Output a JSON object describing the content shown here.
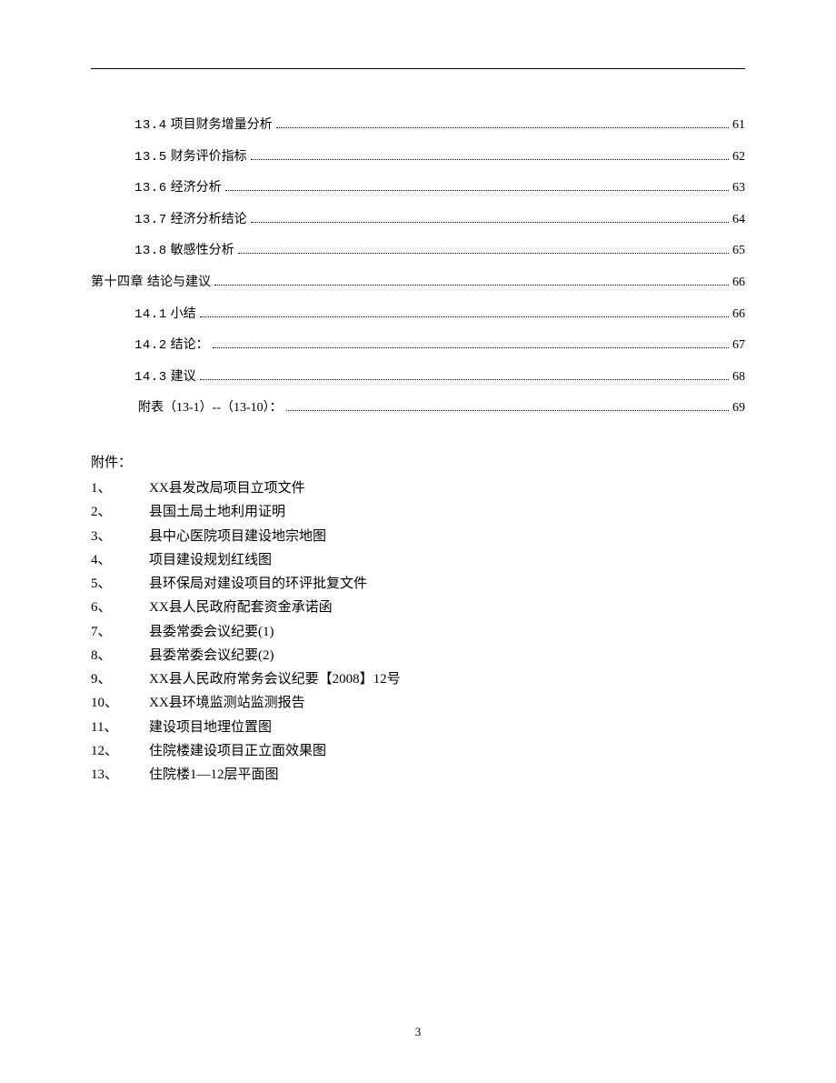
{
  "toc": [
    {
      "indent": 1,
      "num": "13.4",
      "title": "项目财务增量分析",
      "page": "61"
    },
    {
      "indent": 1,
      "num": "13.5",
      "title": "财务评价指标",
      "page": "62"
    },
    {
      "indent": 1,
      "num": "13.6",
      "title": "经济分析",
      "page": "63"
    },
    {
      "indent": 1,
      "num": "13.7",
      "title": "经济分析结论",
      "page": "64"
    },
    {
      "indent": 1,
      "num": "13.8 ",
      "title": " 敏感性分析",
      "page": "65"
    },
    {
      "indent": 0,
      "num": "第十四章",
      "title": "  结论与建议",
      "page": "66"
    },
    {
      "indent": 1,
      "num": "14.1",
      "title": "小结",
      "page": "66"
    },
    {
      "indent": 1,
      "num": "14.2",
      "title": "结论：",
      "page": "67"
    },
    {
      "indent": 1,
      "num": "14.3",
      "title": "建议",
      "page": "68"
    },
    {
      "indent": 1,
      "num": "",
      "title": "附表（13-1）--（13-10）：",
      "page": "69"
    }
  ],
  "attachments_title": "附件：",
  "attachments": [
    {
      "num": "1、",
      "text": "XX县发改局项目立项文件"
    },
    {
      "num": "2、",
      "text": "县国土局土地利用证明"
    },
    {
      "num": "3、",
      "text": "县中心医院项目建设地宗地图"
    },
    {
      "num": "4、",
      "text": "项目建设规划红线图"
    },
    {
      "num": "5、",
      "text": "县环保局对建设项目的环评批复文件"
    },
    {
      "num": "6、",
      "text": "XX县人民政府配套资金承诺函"
    },
    {
      "num": "7、",
      "text": "县委常委会议纪要(1)"
    },
    {
      "num": "8、",
      "text": "县委常委会议纪要(2)"
    },
    {
      "num": "9、",
      "text": "XX县人民政府常务会议纪要【2008】12号"
    },
    {
      "num": "10、",
      "text": "XX县环境监测站监测报告"
    },
    {
      "num": "11、",
      "text": "建设项目地理位置图"
    },
    {
      "num": "12、",
      "text": "住院楼建设项目正立面效果图"
    },
    {
      "num": "13、",
      "text": "住院楼1—12层平面图"
    }
  ],
  "page_number": "3"
}
